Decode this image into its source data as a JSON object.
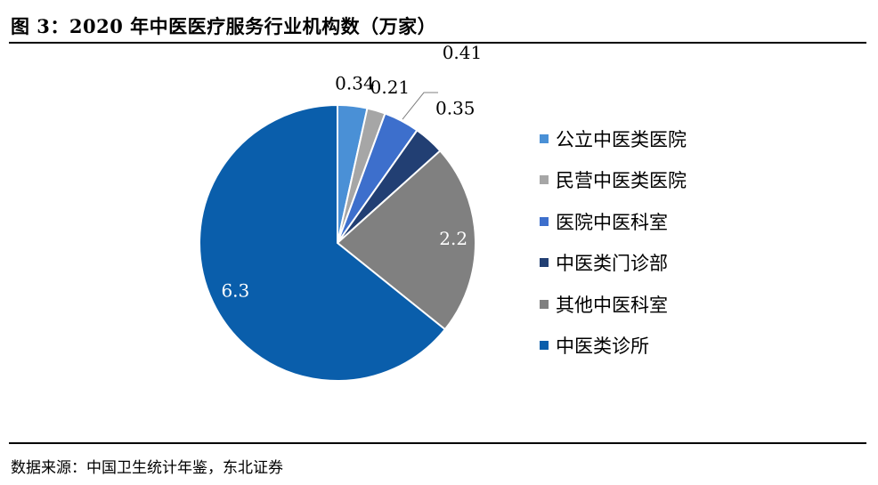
{
  "figure": {
    "title": "图 3：2020 年中医医疗服务行业机构数（万家）",
    "source": "数据来源：中国卫生统计年鉴，东北证券"
  },
  "chart_data": {
    "type": "pie",
    "categories": [
      "公立中医类医院",
      "民营中医类医院",
      "医院中医科室",
      "中医类门诊部",
      "其他中医科室",
      "中医类诊所"
    ],
    "values": [
      0.34,
      0.21,
      0.41,
      0.35,
      2.2,
      6.3
    ],
    "data_labels": [
      "0.34",
      "0.21",
      "0.41",
      "0.35",
      "2.2",
      "6.3"
    ],
    "colors": [
      "#4a90d6",
      "#a6a6a6",
      "#3d6fcc",
      "#223f73",
      "#808080",
      "#0a5eab"
    ],
    "start_angle": "12 o'clock",
    "direction": "clockwise",
    "legend_position": "right"
  }
}
